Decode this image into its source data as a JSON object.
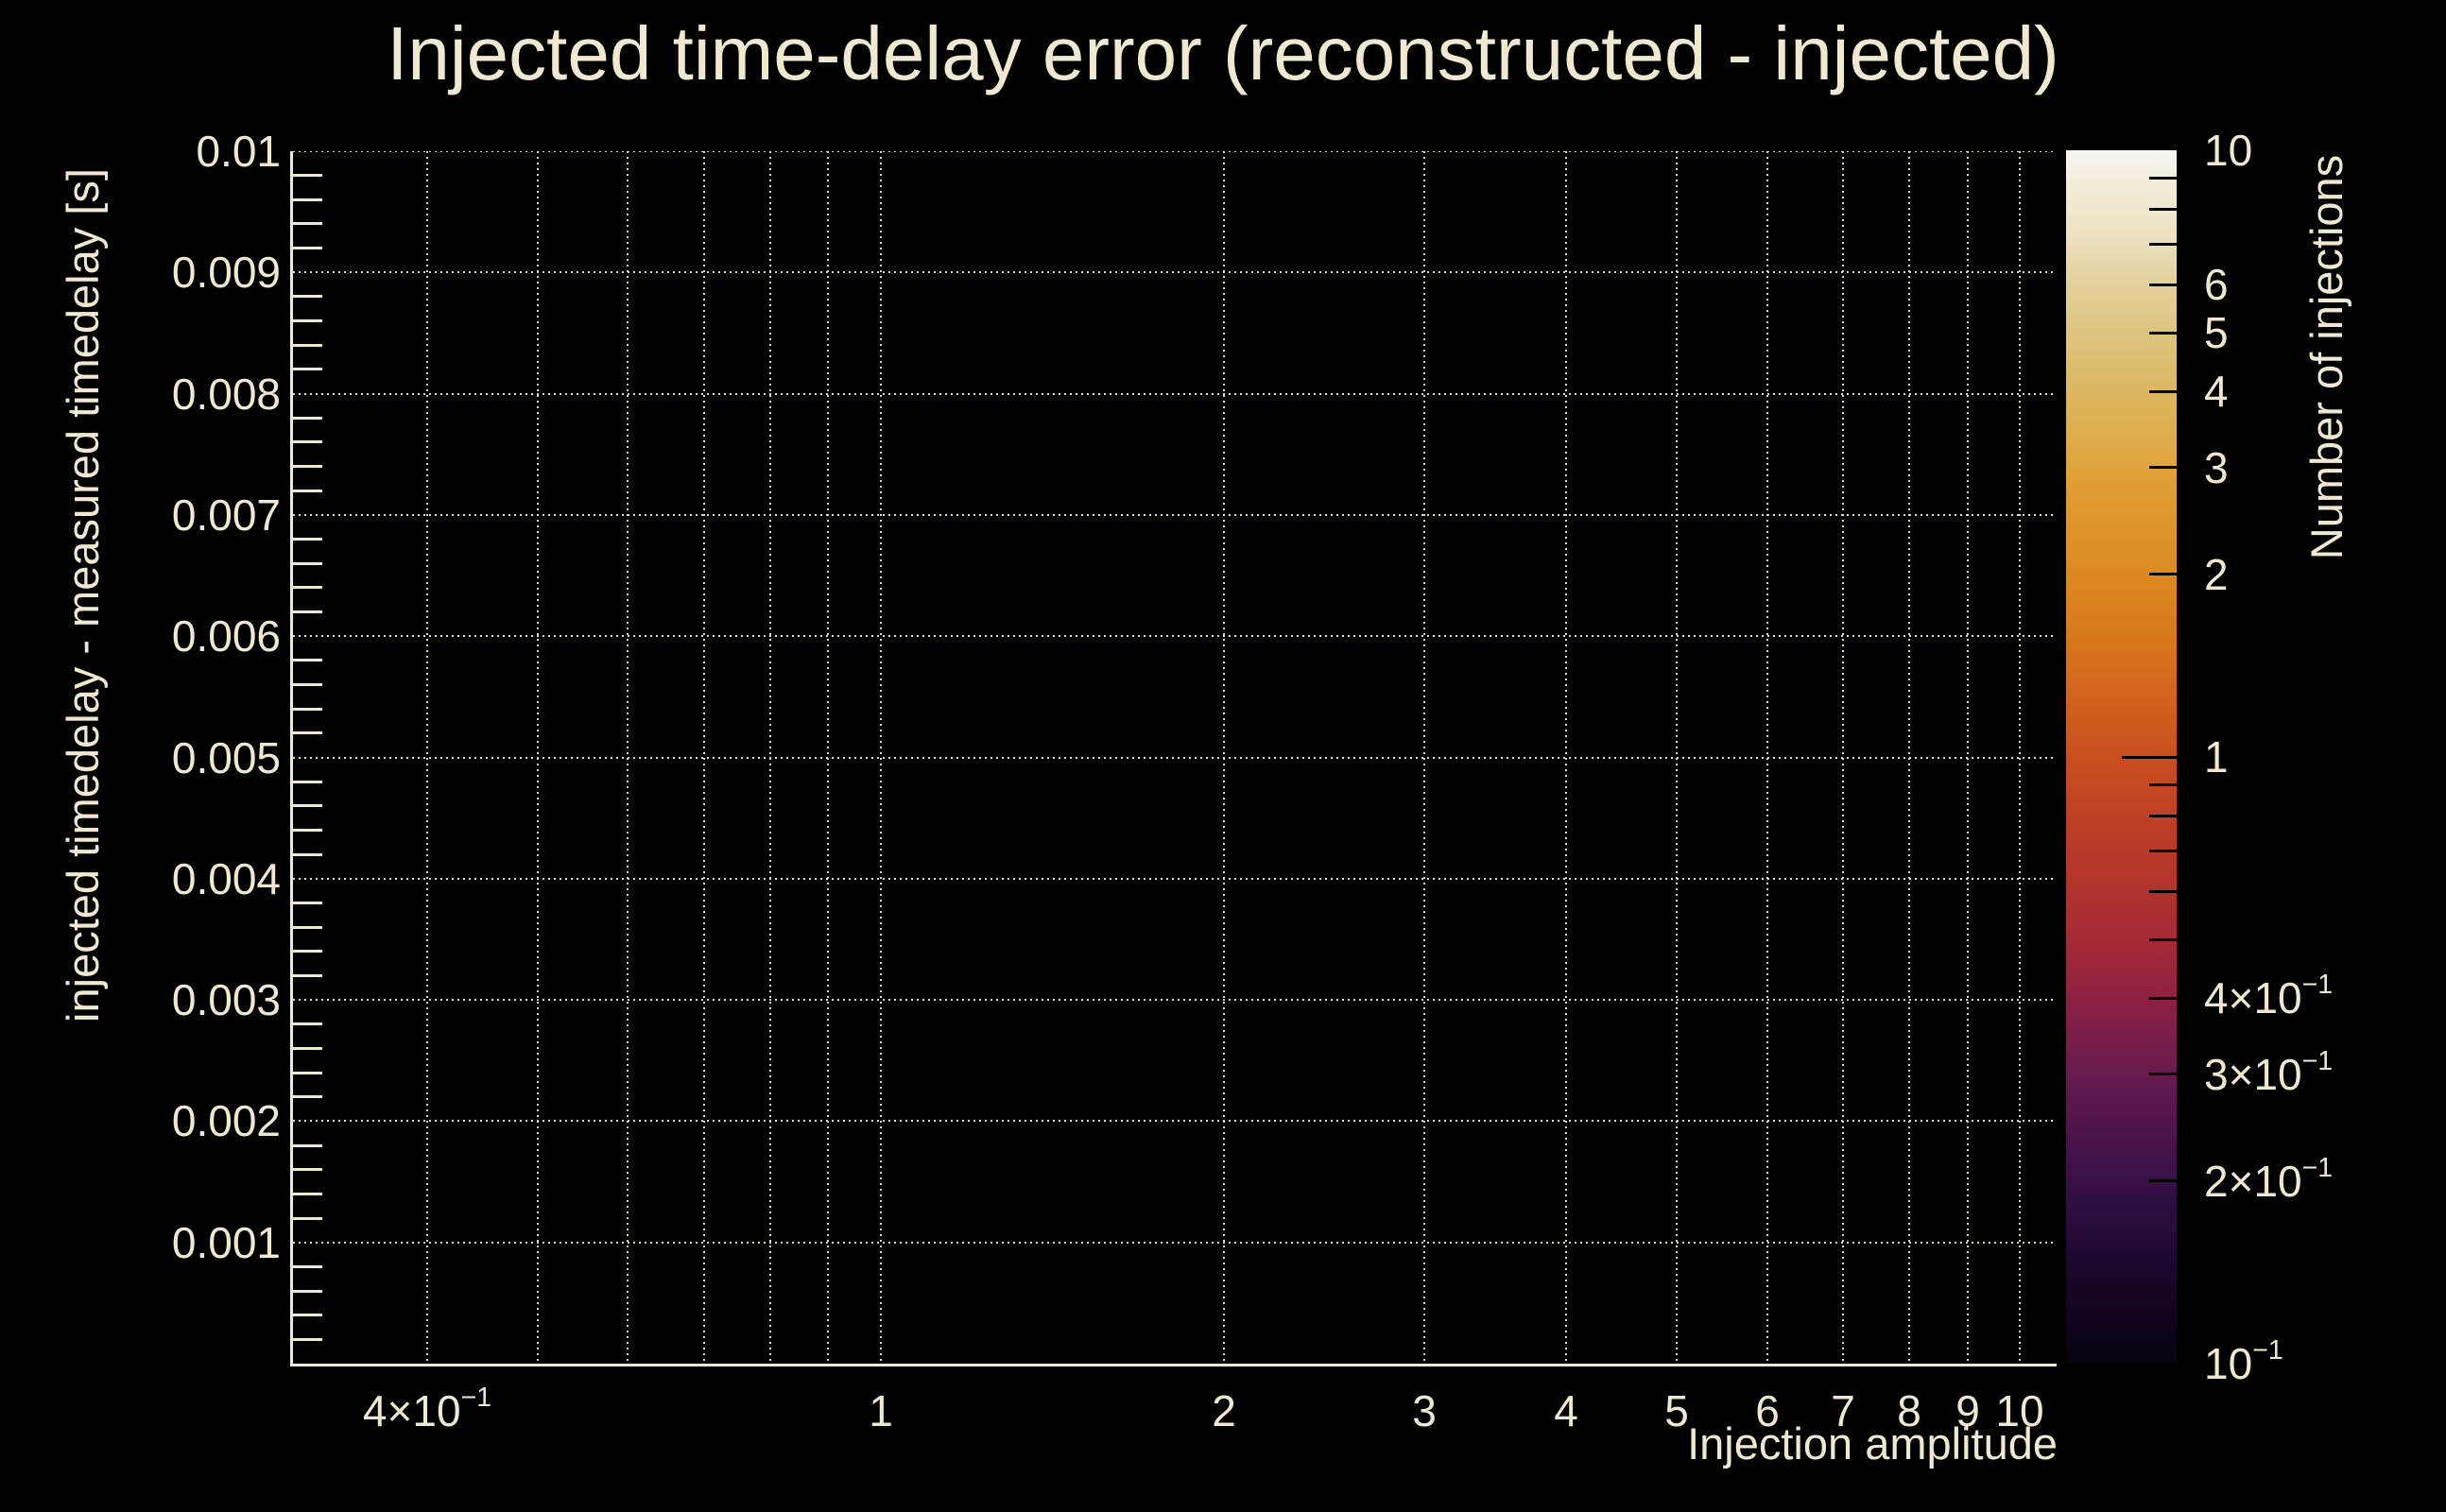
{
  "page": {
    "background": "#000000",
    "text_color": "#f1e8d0",
    "grid_color": "rgba(242,233,210,0.92)"
  },
  "chart_data": {
    "type": "heatmap",
    "title": "Injected time-delay error (reconstructed - injected)",
    "xlabel": "Injection amplitude",
    "ylabel": "injected timedelay - measured timedelay [s]",
    "x_scale": "log",
    "x_range": [
      0.305,
      10.71
    ],
    "y_scale": "linear",
    "y_range": [
      0,
      0.01
    ],
    "grid": true,
    "values": [],
    "x_gridlines": [
      0.4,
      0.5,
      0.6,
      0.7,
      0.8,
      0.9,
      1,
      2,
      3,
      4,
      5,
      6,
      7,
      8,
      9,
      10
    ],
    "x_ticks": [
      {
        "v": 0.4,
        "base": "4×10",
        "exp": "−1"
      },
      {
        "v": 1,
        "base": "1"
      },
      {
        "v": 2,
        "base": "2"
      },
      {
        "v": 3,
        "base": "3"
      },
      {
        "v": 4,
        "base": "4"
      },
      {
        "v": 5,
        "base": "5"
      },
      {
        "v": 6,
        "base": "6"
      },
      {
        "v": 7,
        "base": "7"
      },
      {
        "v": 8,
        "base": "8"
      },
      {
        "v": 9,
        "base": "9"
      },
      {
        "v": 10,
        "base": "10"
      }
    ],
    "y_ticks": [
      {
        "v": 0.01,
        "label": "0.01"
      },
      {
        "v": 0.009,
        "label": "0.009"
      },
      {
        "v": 0.008,
        "label": "0.008"
      },
      {
        "v": 0.007,
        "label": "0.007"
      },
      {
        "v": 0.006,
        "label": "0.006"
      },
      {
        "v": 0.005,
        "label": "0.005"
      },
      {
        "v": 0.004,
        "label": "0.004"
      },
      {
        "v": 0.003,
        "label": "0.003"
      },
      {
        "v": 0.002,
        "label": "0.002"
      },
      {
        "v": 0.001,
        "label": "0.001"
      }
    ],
    "y_minor_step": 0.0002,
    "colorbar": {
      "label": "Number of injections",
      "scale": "log",
      "range": [
        0.1,
        10
      ],
      "tick_labels": [
        {
          "v": 10,
          "base": "10"
        },
        {
          "v": 6,
          "base": "6"
        },
        {
          "v": 5,
          "base": "5"
        },
        {
          "v": 4,
          "base": "4"
        },
        {
          "v": 3,
          "base": "3"
        },
        {
          "v": 2,
          "base": "2"
        },
        {
          "v": 1,
          "base": "1"
        },
        {
          "v": 0.4,
          "base": "4×10",
          "exp": "−1"
        },
        {
          "v": 0.3,
          "base": "3×10",
          "exp": "−1"
        },
        {
          "v": 0.2,
          "base": "2×10",
          "exp": "−1"
        },
        {
          "v": 0.1,
          "base": "10",
          "exp": "−1"
        }
      ],
      "minor_ticks": [
        9,
        8,
        7,
        6,
        5,
        4,
        3,
        2,
        0.9,
        0.8,
        0.7,
        0.6,
        0.5,
        0.4,
        0.3,
        0.2
      ],
      "major_ticks": [
        1
      ],
      "gradient": [
        {
          "p": 0,
          "c": "#f8f6f2"
        },
        {
          "p": 2.3,
          "c": "#f3eedd"
        },
        {
          "p": 4.8,
          "c": "#f0e8cf"
        },
        {
          "p": 7.7,
          "c": "#ebdfbc"
        },
        {
          "p": 11.1,
          "c": "#e3d09a"
        },
        {
          "p": 15.1,
          "c": "#ddc57f"
        },
        {
          "p": 19.9,
          "c": "#dcb761"
        },
        {
          "p": 26.1,
          "c": "#e0a43c"
        },
        {
          "p": 30.1,
          "c": "#df962c"
        },
        {
          "p": 35.0,
          "c": "#dc8a20"
        },
        {
          "p": 41.2,
          "c": "#d8731c"
        },
        {
          "p": 50.0,
          "c": "#ca4f1f"
        },
        {
          "p": 57.7,
          "c": "#ba3928"
        },
        {
          "p": 65.1,
          "c": "#a52a35"
        },
        {
          "p": 69.9,
          "c": "#8e2142"
        },
        {
          "p": 76.1,
          "c": "#671b4e"
        },
        {
          "p": 85.0,
          "c": "#371048"
        },
        {
          "p": 91.2,
          "c": "#1d0830"
        },
        {
          "p": 100,
          "c": "#070110"
        }
      ]
    }
  }
}
